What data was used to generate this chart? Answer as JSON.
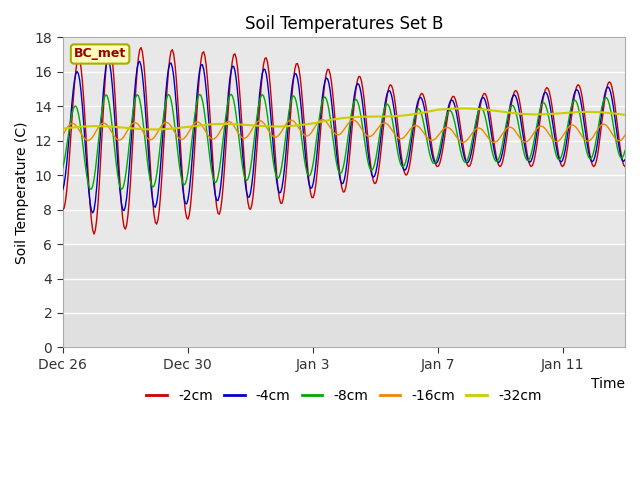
{
  "title": "Soil Temperatures Set B",
  "xlabel": "Time",
  "ylabel": "Soil Temperature (C)",
  "annotation": "BC_met",
  "ylim": [
    0,
    18
  ],
  "yticks": [
    0,
    2,
    4,
    6,
    8,
    10,
    12,
    14,
    16,
    18
  ],
  "xtick_labels": [
    "Dec 26",
    "Dec 30",
    "Jan 3",
    "Jan 7",
    "Jan 11"
  ],
  "xtick_positions": [
    0,
    4,
    8,
    12,
    16
  ],
  "legend_labels": [
    "-2cm",
    "-4cm",
    "-8cm",
    "-16cm",
    "-32cm"
  ],
  "colors": [
    "#cc0000",
    "#0000cc",
    "#00aa00",
    "#ee8800",
    "#cccc00"
  ],
  "bg_upper_color": "#e8e8e8",
  "bg_lower_color": "#dcdcdc",
  "n_days": 18,
  "samples_per_day": 24
}
